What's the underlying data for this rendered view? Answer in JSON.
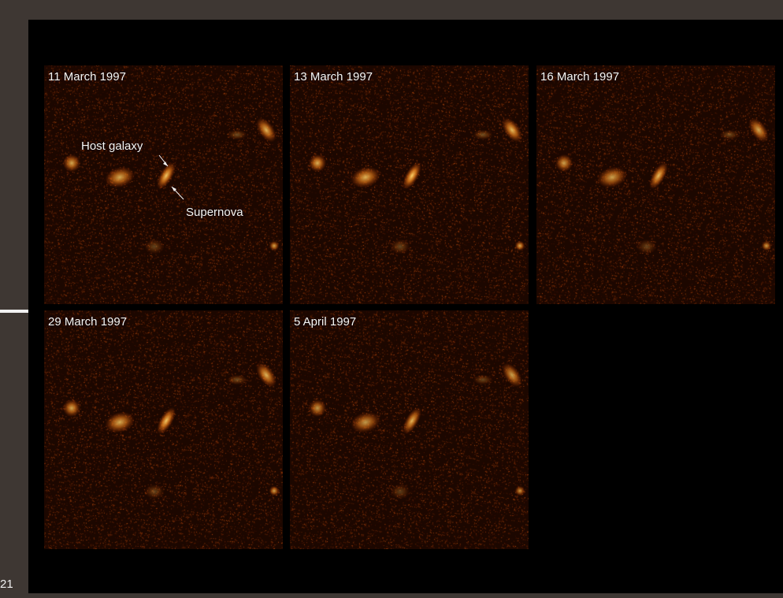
{
  "page_number": "21",
  "panels": [
    {
      "date": "11 March 1997"
    },
    {
      "date": "13 March 1997"
    },
    {
      "date": "16 March 1997"
    },
    {
      "date": "29 March 1997"
    },
    {
      "date": "5 April 1997"
    }
  ],
  "annotations": {
    "host_galaxy": "Host galaxy",
    "supernova": "Supernova"
  },
  "colors": {
    "sky_background": "#1c0700",
    "noise_speckle": "#c2410b",
    "source_glow": "#ffc35a",
    "plate": "#000000",
    "slide_margin": "#3e3733"
  }
}
